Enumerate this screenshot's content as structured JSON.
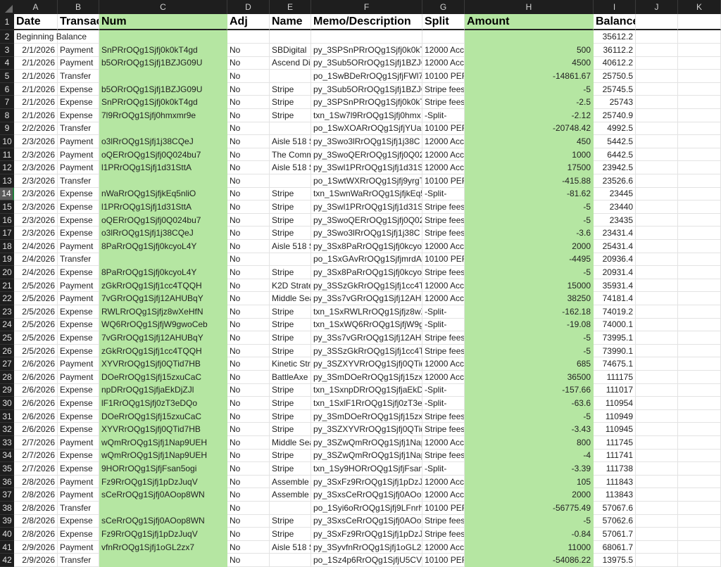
{
  "columns": [
    "A",
    "B",
    "C",
    "D",
    "E",
    "F",
    "G",
    "H",
    "I",
    "J",
    "K"
  ],
  "header": [
    "Date",
    "Transaction",
    "Num",
    "Adj",
    "Name",
    "Memo/Description",
    "Split",
    "Amount",
    "Balance",
    "",
    ""
  ],
  "beginning": {
    "label": "Beginning Balance",
    "balance": "35612.2"
  },
  "selected_row": 14,
  "highlight_color": "#b5e6a2",
  "rows": [
    [
      "2/1/2026",
      "Payment",
      "SnPRrOQg1Sjfj0k0kT4gd",
      "No",
      "SBDigital",
      "py_3SPSnPRrOQg1Sjfj0k0kT",
      "12000 Acc",
      "500",
      "36112.2"
    ],
    [
      "2/1/2026",
      "Payment",
      "b5ORrOQg1Sjfj1BZJG09U",
      "No",
      "Ascend Dig",
      "py_3Sub5ORrOQg1Sjfj1BZJG",
      "12000 Acc",
      "4500",
      "40612.2"
    ],
    [
      "2/1/2026",
      "Transfer",
      "",
      "No",
      "",
      "po_1SwBDeRrOQg1SjfjFWl7",
      "10100 PER",
      "-14861.67",
      "25750.5"
    ],
    [
      "2/1/2026",
      "Expense",
      "b5ORrOQg1Sjfj1BZJG09U",
      "No",
      "Stripe",
      "py_3Sub5ORrOQg1Sjfj1BZJG",
      "Stripe fees",
      "-5",
      "25745.5"
    ],
    [
      "2/1/2026",
      "Expense",
      "SnPRrOQg1Sjfj0k0kT4gd",
      "No",
      "Stripe",
      "py_3SPSnPRrOQg1Sjfj0k0kT",
      "Stripe fees",
      "-2.5",
      "25743"
    ],
    [
      "2/1/2026",
      "Expense",
      "7l9RrOQg1Sjfj0hmxmr9e",
      "No",
      "Stripe",
      "txn_1Sw7l9RrOQg1Sjfj0hmx",
      "-Split-",
      "-2.12",
      "25740.9"
    ],
    [
      "2/2/2026",
      "Transfer",
      "",
      "No",
      "",
      "po_1SwXOARrOQg1SjfjYUan",
      "10100 PER",
      "-20748.42",
      "4992.5"
    ],
    [
      "2/3/2026",
      "Payment",
      "o3lRrOQg1Sjfj1j38CQeJ",
      "No",
      "Aisle 518 S",
      "py_3Swo3lRrOQg1Sjfj1j38C",
      "12000 Acc",
      "450",
      "5442.5"
    ],
    [
      "2/3/2026",
      "Payment",
      "oQERrOQg1Sjfj0Q024bu7",
      "No",
      "The Comm",
      "py_3SwoQERrOQg1Sjfj0Q02",
      "12000 Acc",
      "1000",
      "6442.5"
    ],
    [
      "2/3/2026",
      "Payment",
      "l1PRrOQg1Sjfj1d31SttA",
      "No",
      "Aisle 518 S",
      "py_3Swl1PRrOQg1Sjfj1d31S",
      "12000 Acc",
      "17500",
      "23942.5"
    ],
    [
      "2/3/2026",
      "Transfer",
      "",
      "No",
      "",
      "po_1SwtWXRrOQg1Sjfj9yrgT",
      "10100 PER",
      "-415.88",
      "23526.6"
    ],
    [
      "2/3/2026",
      "Expense",
      "nWaRrOQg1SjfjkEq5nliO",
      "No",
      "Stripe",
      "txn_1SwnWaRrOQg1SjfjkEq5",
      "-Split-",
      "-81.62",
      "23445"
    ],
    [
      "2/3/2026",
      "Expense",
      "l1PRrOQg1Sjfj1d31SttA",
      "No",
      "Stripe",
      "py_3Swl1PRrOQg1Sjfj1d31S",
      "Stripe fees",
      "-5",
      "23440"
    ],
    [
      "2/3/2026",
      "Expense",
      "oQERrOQg1Sjfj0Q024bu7",
      "No",
      "Stripe",
      "py_3SwoQERrOQg1Sjfj0Q02",
      "Stripe fees",
      "-5",
      "23435"
    ],
    [
      "2/3/2026",
      "Expense",
      "o3lRrOQg1Sjfj1j38CQeJ",
      "No",
      "Stripe",
      "py_3Swo3lRrOQg1Sjfj1j38C",
      "Stripe fees",
      "-3.6",
      "23431.4"
    ],
    [
      "2/4/2026",
      "Payment",
      "8PaRrOQg1Sjfj0kcyoL4Y",
      "No",
      "Aisle 518 S",
      "py_3Sx8PaRrOQg1Sjfj0kcyoL",
      "12000 Acc",
      "2000",
      "25431.4"
    ],
    [
      "2/4/2026",
      "Transfer",
      "",
      "No",
      "",
      "po_1SxGAvRrOQg1SjfjmrdAL",
      "10100 PER",
      "-4495",
      "20936.4"
    ],
    [
      "2/4/2026",
      "Expense",
      "8PaRrOQg1Sjfj0kcyoL4Y",
      "No",
      "Stripe",
      "py_3Sx8PaRrOQg1Sjfj0kcyoL",
      "Stripe fees",
      "-5",
      "20931.4"
    ],
    [
      "2/5/2026",
      "Payment",
      "zGkRrOQg1Sjfj1cc4TQQH",
      "No",
      "K2D Strate",
      "py_3SSzGkRrOQg1Sjfj1cc4T",
      "12000 Acc",
      "15000",
      "35931.4"
    ],
    [
      "2/5/2026",
      "Payment",
      "7vGRrOQg1Sjfj12AHUBqY",
      "No",
      "Middle Sea",
      "py_3Ss7vGRrOQg1Sjfj12AHU",
      "12000 Acc",
      "38250",
      "74181.4"
    ],
    [
      "2/5/2026",
      "Expense",
      "RWLRrOQg1Sjfjz8wXeHfN",
      "No",
      "Stripe",
      "txn_1SxRWLRrOQg1Sjfjz8wX",
      "-Split-",
      "-162.18",
      "74019.2"
    ],
    [
      "2/5/2026",
      "Expense",
      "WQ6RrOQg1SjfjW9gwoCeb",
      "No",
      "Stripe",
      "txn_1SxWQ6RrOQg1SjfjW9g",
      "-Split-",
      "-19.08",
      "74000.1"
    ],
    [
      "2/5/2026",
      "Expense",
      "7vGRrOQg1Sjfj12AHUBqY",
      "No",
      "Stripe",
      "py_3Ss7vGRrOQg1Sjfj12AHU",
      "Stripe fees",
      "-5",
      "73995.1"
    ],
    [
      "2/5/2026",
      "Expense",
      "zGkRrOQg1Sjfj1cc4TQQH",
      "No",
      "Stripe",
      "py_3SSzGkRrOQg1Sjfj1cc4T",
      "Stripe fees",
      "-5",
      "73990.1"
    ],
    [
      "2/6/2026",
      "Payment",
      "XYVRrOQg1Sjfj0QTid7HB",
      "No",
      "Kinetic Str",
      "py_3SZXYVRrOQg1Sjfj0QTid7",
      "12000 Acc",
      "685",
      "74675.1"
    ],
    [
      "2/6/2026",
      "Payment",
      "DOeRrOQg1Sjfj15zxuCaC",
      "No",
      "BattleAxe",
      "py_3SmDOeRrOQg1Sjfj15zx",
      "12000 Acc",
      "36500",
      "111175"
    ],
    [
      "2/6/2026",
      "Expense",
      "npDRrOQg1SjfjaEkDjZJl",
      "No",
      "Stripe",
      "txn_1SxnpDRrOQg1SjfjaEkD",
      "-Split-",
      "-157.66",
      "111017"
    ],
    [
      "2/6/2026",
      "Expense",
      "lF1RrOQg1Sjfj0zT3eDQo",
      "No",
      "Stripe",
      "txn_1SxlF1RrOQg1Sjfj0zT3el",
      "-Split-",
      "-63.6",
      "110954"
    ],
    [
      "2/6/2026",
      "Expense",
      "DOeRrOQg1Sjfj15zxuCaC",
      "No",
      "Stripe",
      "py_3SmDOeRrOQg1Sjfj15zx",
      "Stripe fees",
      "-5",
      "110949"
    ],
    [
      "2/6/2026",
      "Expense",
      "XYVRrOQg1Sjfj0QTid7HB",
      "No",
      "Stripe",
      "py_3SZXYVRrOQg1Sjfj0QTid7",
      "Stripe fees",
      "-3.43",
      "110945"
    ],
    [
      "2/7/2026",
      "Payment",
      "wQmRrOQg1Sjfj1Nap9UEH",
      "No",
      "Middle Sea",
      "py_3SZwQmRrOQg1Sjfj1Nap",
      "12000 Acc",
      "800",
      "111745"
    ],
    [
      "2/7/2026",
      "Expense",
      "wQmRrOQg1Sjfj1Nap9UEH",
      "No",
      "Stripe",
      "py_3SZwQmRrOQg1Sjfj1Nap",
      "Stripe fees",
      "-4",
      "111741"
    ],
    [
      "2/7/2026",
      "Expense",
      "9HORrOQg1SjfjFsan5ogi",
      "No",
      "Stripe",
      "txn_1Sy9HORrOQg1SjfjFsan",
      "-Split-",
      "-3.39",
      "111738"
    ],
    [
      "2/8/2026",
      "Payment",
      "Fz9RrOQg1Sjfj1pDzJuqV",
      "No",
      "Assemble",
      "py_3SxFz9RrOQg1Sjfj1pDzJu",
      "12000 Acc",
      "105",
      "111843"
    ],
    [
      "2/8/2026",
      "Payment",
      "sCeRrOQg1Sjfj0AOop8WN",
      "No",
      "Assemble",
      "py_3SxsCeRrOQg1Sjfj0AOop",
      "12000 Acc",
      "2000",
      "113843"
    ],
    [
      "2/8/2026",
      "Transfer",
      "",
      "No",
      "",
      "po_1Syi6oRrOQg1Sjfj9LFnrh",
      "10100 PER",
      "-56775.49",
      "57067.6"
    ],
    [
      "2/8/2026",
      "Expense",
      "sCeRrOQg1Sjfj0AOop8WN",
      "No",
      "Stripe",
      "py_3SxsCeRrOQg1Sjfj0AOop",
      "Stripe fees",
      "-5",
      "57062.6"
    ],
    [
      "2/8/2026",
      "Expense",
      "Fz9RrOQg1Sjfj1pDzJuqV",
      "No",
      "Stripe",
      "py_3SxFz9RrOQg1Sjfj1pDzJu",
      "Stripe fees",
      "-0.84",
      "57061.7"
    ],
    [
      "2/9/2026",
      "Payment",
      "vfnRrOQg1Sjfj1oGL2zx7",
      "No",
      "Aisle 518 S",
      "py_3SyvfnRrOQg1Sjfj1oGL2z",
      "12000 Acc",
      "11000",
      "68061.7"
    ],
    [
      "2/9/2026",
      "Transfer",
      "",
      "No",
      "",
      "po_1Sz4p6RrOQg1SjfjU5CV",
      "10100 PER",
      "-54086.22",
      "13975.5"
    ]
  ]
}
